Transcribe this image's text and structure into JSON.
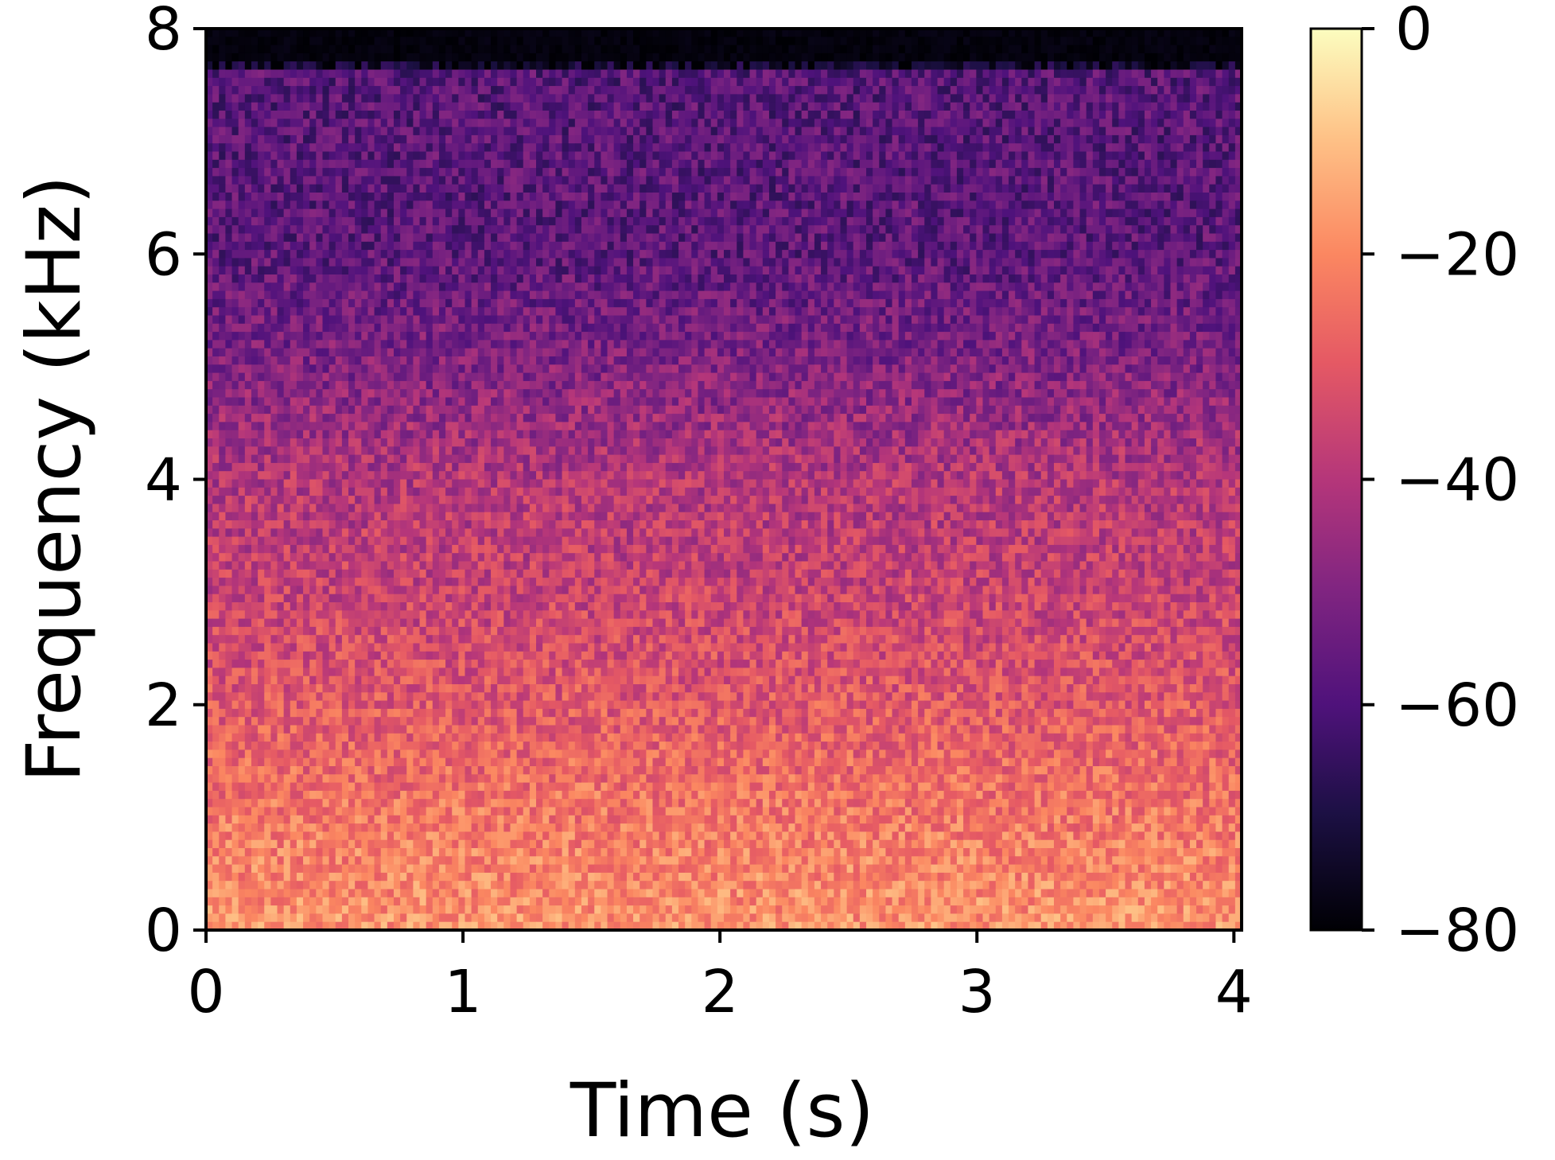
{
  "chart_data": {
    "type": "heatmap",
    "title": "",
    "xlabel": "Time (s)",
    "ylabel": "Frequency (kHz)",
    "xlim": [
      0,
      4.03
    ],
    "ylim": [
      0,
      8
    ],
    "x_ticks": [
      0,
      1,
      2,
      3,
      4
    ],
    "y_ticks": [
      0,
      2,
      4,
      6,
      8
    ],
    "x_tick_labels": [
      "0",
      "1",
      "2",
      "3",
      "4"
    ],
    "y_tick_labels": [
      "0",
      "2",
      "4",
      "6",
      "8"
    ],
    "colormap": "magma",
    "colorbar": {
      "range_db": [
        -80,
        0
      ],
      "ticks": [
        0,
        -20,
        -40,
        -60,
        -80
      ],
      "tick_labels": [
        "0",
        "−20",
        "−40",
        "−60",
        "−80"
      ]
    },
    "intensity_profile": {
      "description_points_khz_db": [
        [
          0,
          -18
        ],
        [
          0.8,
          -22
        ],
        [
          2,
          -30
        ],
        [
          3,
          -36
        ],
        [
          4,
          -40
        ],
        [
          5,
          -50
        ],
        [
          6,
          -57
        ],
        [
          7.6,
          -58
        ],
        [
          7.7,
          -80
        ],
        [
          8,
          -80
        ]
      ]
    },
    "grid": false,
    "legend": "none"
  }
}
